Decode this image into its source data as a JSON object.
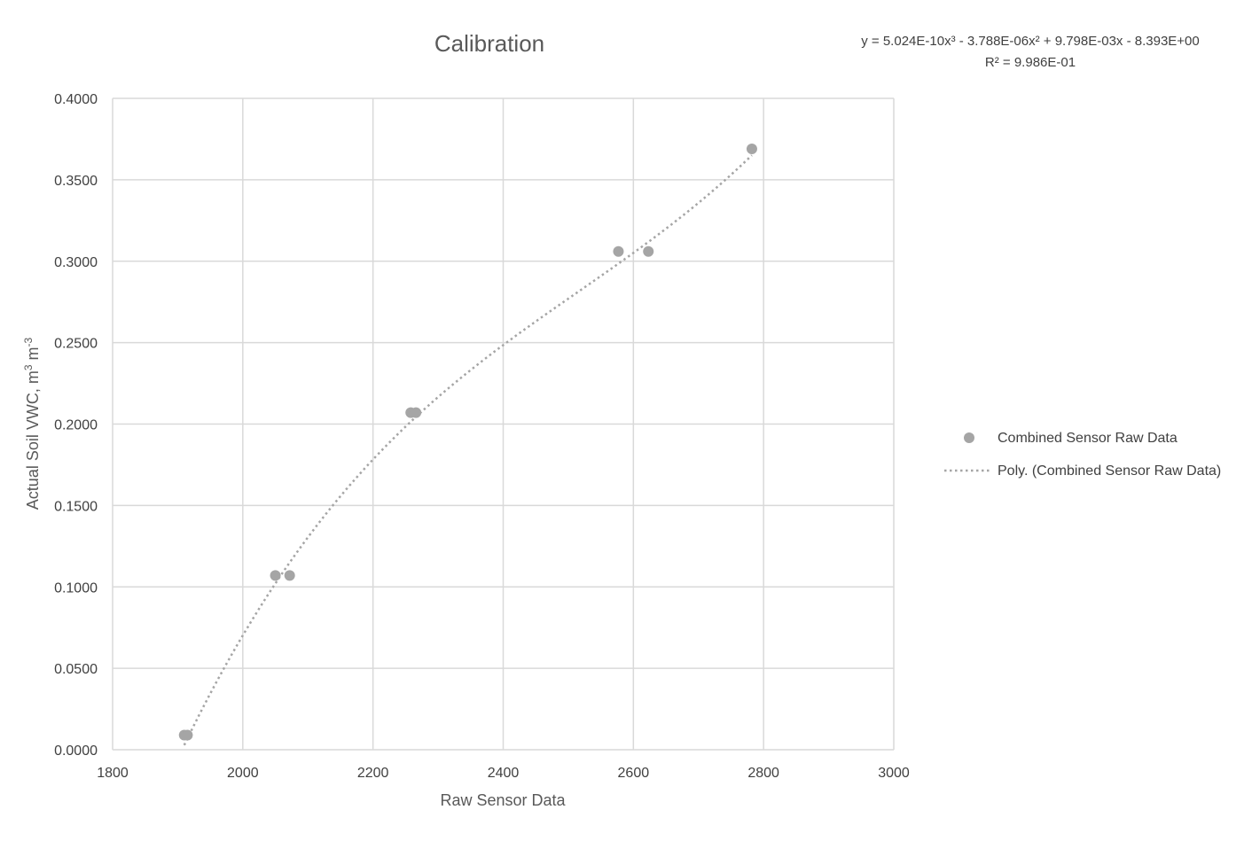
{
  "colors": {
    "marker": "#a5a5a5",
    "trendline": "#a5a5a5",
    "grid": "#d9d9d9",
    "text": "#595959"
  },
  "chart_data": {
    "type": "scatter",
    "title": "Calibration",
    "xlabel": "Raw Sensor Data",
    "ylabel_main": "Actual Soil VWC, m",
    "ylabel_sup1": "3",
    "ylabel_mid": " m",
    "ylabel_sup2": "-3",
    "xlim": [
      1800,
      3000
    ],
    "ylim": [
      0,
      0.4
    ],
    "xticks": [
      1800,
      2000,
      2200,
      2400,
      2600,
      2800,
      3000
    ],
    "yticks": [
      0,
      0.05,
      0.1,
      0.15,
      0.2,
      0.25,
      0.3,
      0.35,
      0.4
    ],
    "xtick_labels": [
      "1800",
      "2000",
      "2200",
      "2400",
      "2600",
      "2800",
      "3000"
    ],
    "ytick_labels": [
      "0.0000",
      "0.0500",
      "0.1000",
      "0.1500",
      "0.2000",
      "0.2500",
      "0.3000",
      "0.3500",
      "0.4000"
    ],
    "grid": true,
    "legend_position": "right",
    "series": [
      {
        "name": "Combined Sensor Raw Data",
        "points": [
          {
            "x": 1910,
            "y": 0.009
          },
          {
            "x": 1915,
            "y": 0.009
          },
          {
            "x": 2050,
            "y": 0.107
          },
          {
            "x": 2072,
            "y": 0.107
          },
          {
            "x": 2258,
            "y": 0.207
          },
          {
            "x": 2266,
            "y": 0.207
          },
          {
            "x": 2577,
            "y": 0.306
          },
          {
            "x": 2623,
            "y": 0.306
          },
          {
            "x": 2782,
            "y": 0.369
          }
        ]
      }
    ],
    "trendline": {
      "name": "Poly. (Combined Sensor Raw Data)",
      "type": "polynomial",
      "order": 3,
      "coefficients": [
        5.024e-10,
        -3.788e-06,
        0.009798,
        -8.393
      ],
      "x_range": [
        1910,
        2782
      ]
    },
    "equation_line1": "y = 5.024E-10x³ - 3.788E-06x² + 9.798E-03x - 8.393E+00",
    "equation_line2": "R² = 9.986E-01"
  }
}
